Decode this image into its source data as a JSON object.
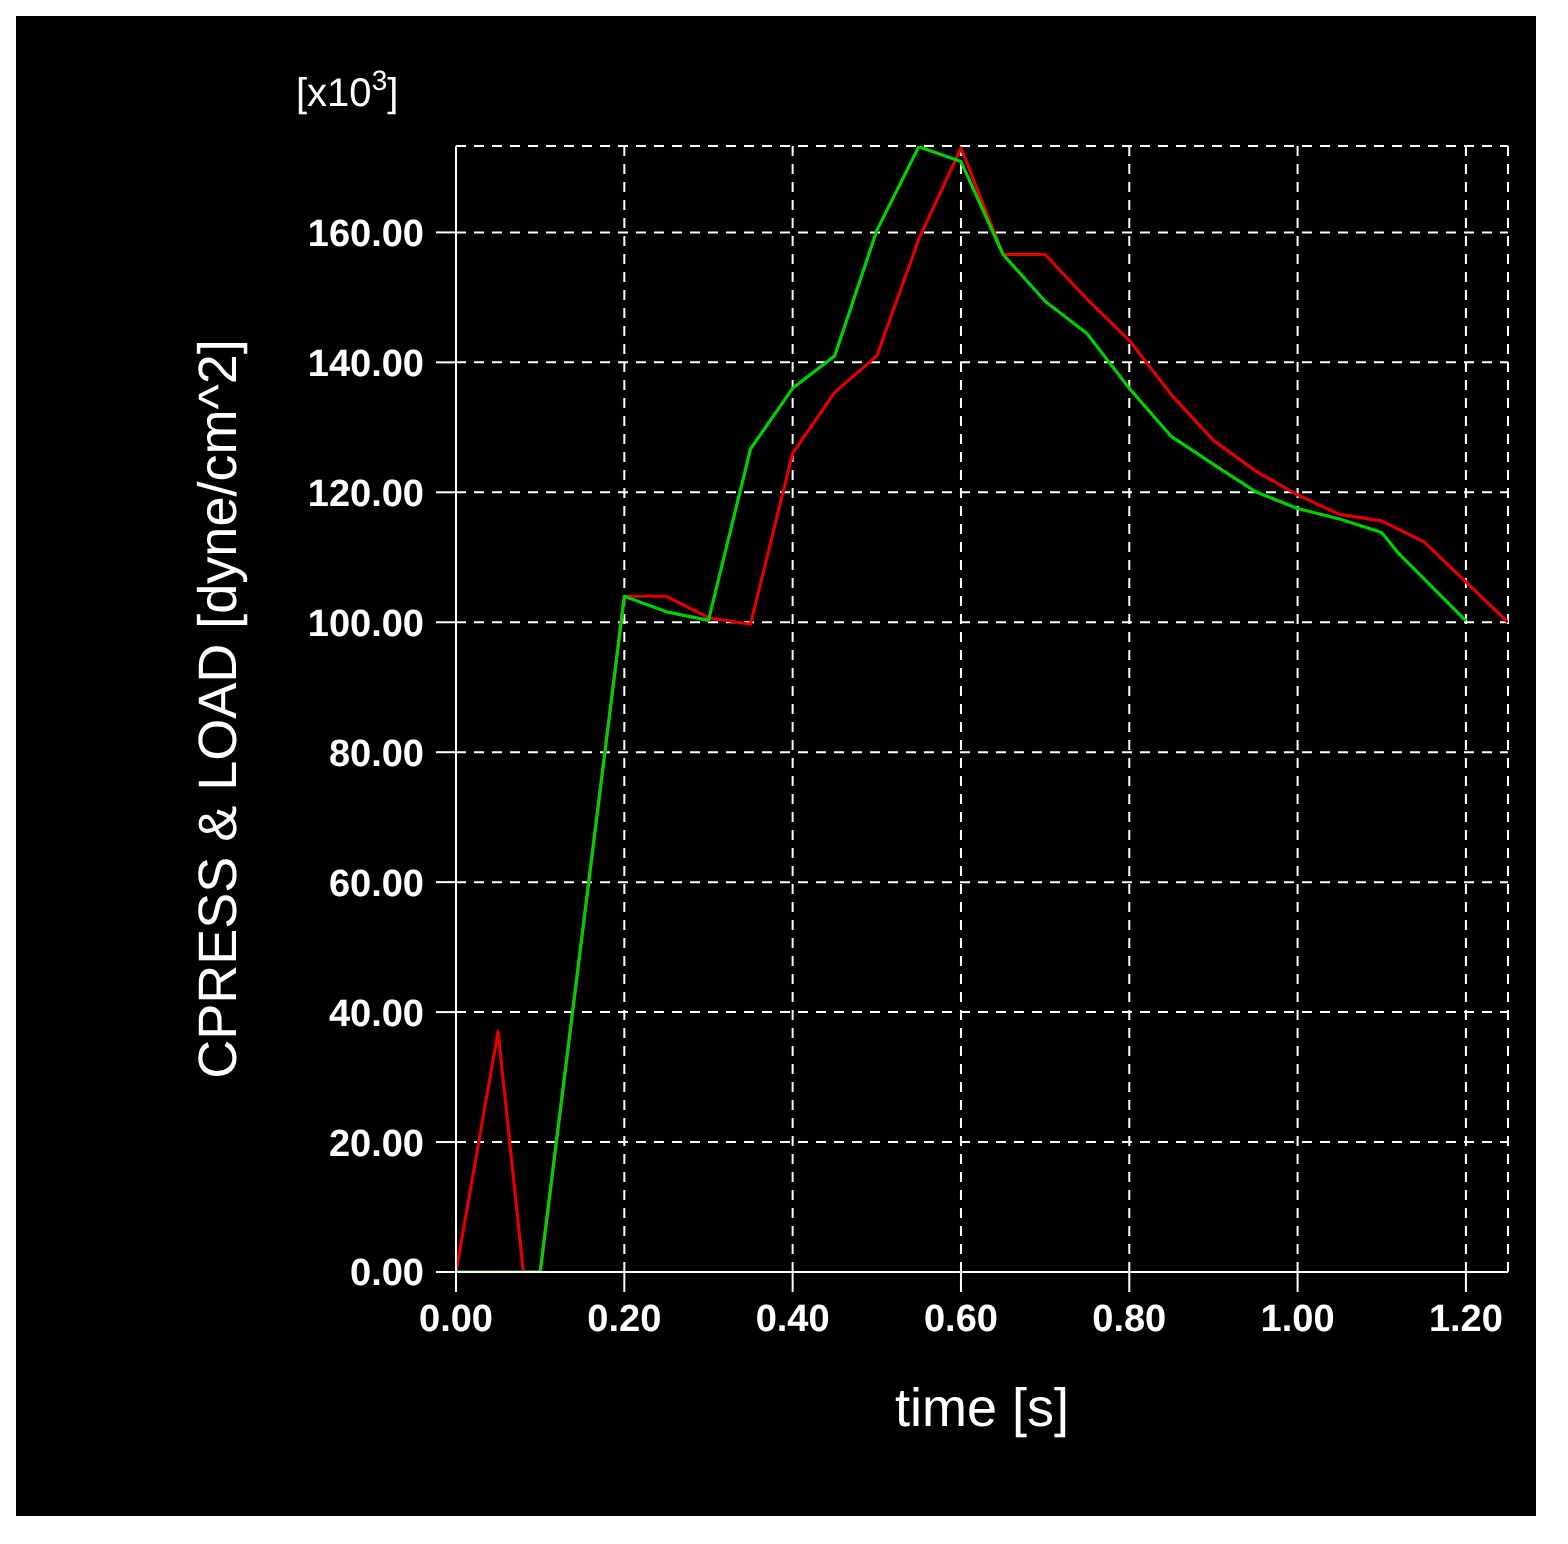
{
  "chart_data": {
    "type": "line",
    "xlabel": "time [s]",
    "ylabel": "CPRESS & LOAD [dyne/cm^2]",
    "annotations": [
      "[x10$^{3}$]"
    ],
    "xlim": [
      0,
      1.25
    ],
    "xticks": [
      {
        "value": 0,
        "label": "0.00"
      },
      {
        "value": 0.2,
        "label": "0.20"
      },
      {
        "value": 0.4,
        "label": "0.40"
      },
      {
        "value": 0.6,
        "label": "0.60"
      },
      {
        "value": 0.8,
        "label": "0.80"
      },
      {
        "value": 1.0,
        "label": "1.00"
      },
      {
        "value": 1.2,
        "label": "1.20"
      }
    ],
    "ylim": [
      0,
      173.3
    ],
    "yticks": [
      {
        "value": 0,
        "label": "0.00"
      },
      {
        "value": 20,
        "label": "20.00"
      },
      {
        "value": 40,
        "label": "40.00"
      },
      {
        "value": 60,
        "label": "60.00"
      },
      {
        "value": 80,
        "label": "80.00"
      },
      {
        "value": 100,
        "label": "100.00"
      },
      {
        "value": 120,
        "label": "120.00"
      },
      {
        "value": 140,
        "label": "140.00"
      },
      {
        "value": 160,
        "label": "160.00"
      }
    ],
    "grid": true,
    "line_style": "solid",
    "marker": "none",
    "series": [
      {
        "color": "#e00000",
        "x": [
          0,
          0.05,
          0.08,
          0.1,
          0.2,
          0.25,
          0.3,
          0.35,
          0.4,
          0.45,
          0.5,
          0.55,
          0.6,
          0.65,
          0.7,
          0.75,
          0.8,
          0.85,
          0.9,
          0.95,
          1.0,
          1.05,
          1.1,
          1.15,
          1.25
        ],
        "values": [
          0,
          37,
          0,
          0,
          104,
          104,
          100.7,
          99.7,
          126,
          135.4,
          141,
          159,
          173,
          156.6,
          156.6,
          149.7,
          143.4,
          135,
          128,
          123.3,
          119.6,
          116.6,
          115.6,
          112.4,
          100
        ]
      },
      {
        "color": "#00d000",
        "x": [
          0,
          0.1,
          0.2,
          0.25,
          0.3,
          0.35,
          0.4,
          0.45,
          0.5,
          0.55,
          0.6,
          0.65,
          0.7,
          0.75,
          0.8,
          0.85,
          0.9,
          0.95,
          1.0,
          1.05,
          1.1,
          1.12,
          1.2
        ],
        "values": [
          0,
          0,
          104,
          101.6,
          100.3,
          126.7,
          136,
          141,
          160.3,
          173.2,
          170.9,
          156.6,
          149.4,
          144.4,
          136,
          128.6,
          124.3,
          120.1,
          117.5,
          115.9,
          113.8,
          110.6,
          100.2
        ]
      }
    ]
  }
}
